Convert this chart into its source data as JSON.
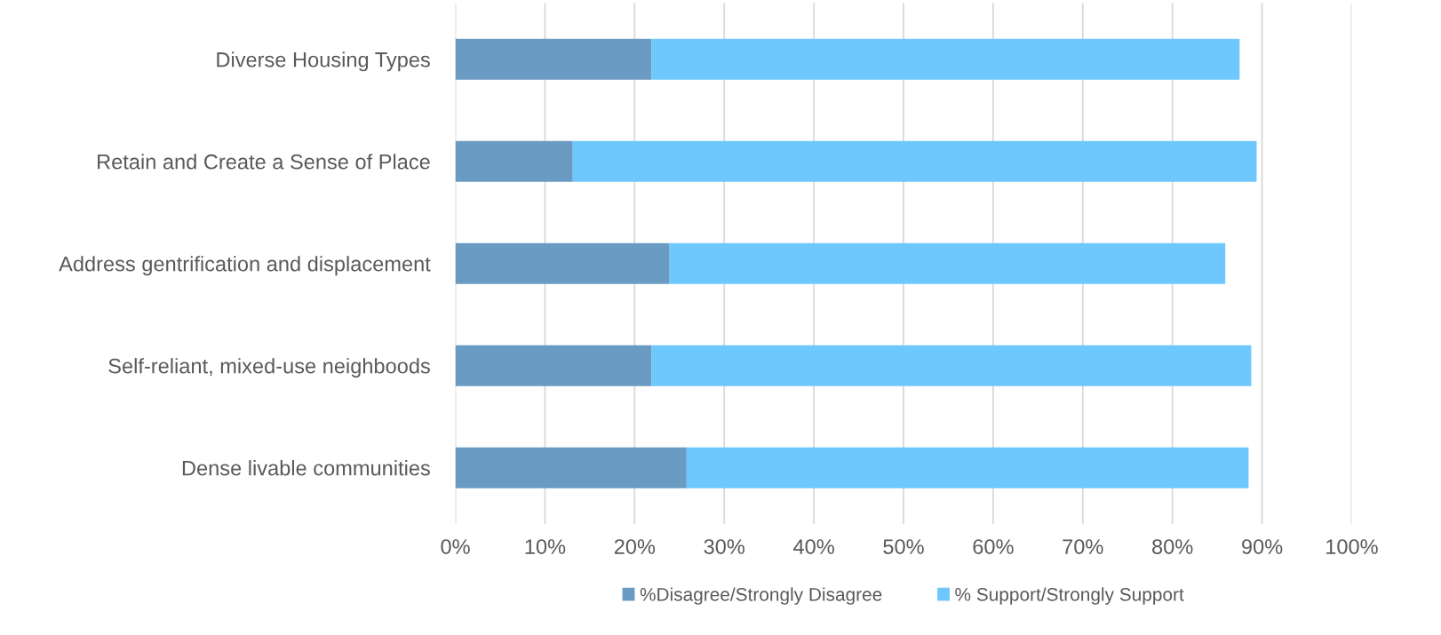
{
  "chart_data": {
    "type": "bar",
    "orientation": "horizontal",
    "stacked": true,
    "categories": [
      "Diverse Housing Types",
      "Retain and Create a Sense of Place",
      "Address gentrification and displacement",
      "Self-reliant, mixed-use neighboods",
      "Dense livable communities"
    ],
    "series": [
      {
        "name": "%Disagree/Strongly Disagree",
        "color": "#6a9bc3",
        "values": [
          21.9,
          13.1,
          23.9,
          21.9,
          25.8
        ]
      },
      {
        "name": "% Support/Strongly Support",
        "color": "#6fc8fd",
        "values": [
          65.6,
          76.3,
          62.0,
          66.9,
          62.7
        ]
      }
    ],
    "xlim": [
      0,
      100
    ],
    "xticks": [
      {
        "value": 0,
        "label": "0%"
      },
      {
        "value": 10,
        "label": "10%"
      },
      {
        "value": 20,
        "label": "20%"
      },
      {
        "value": 30,
        "label": "30%"
      },
      {
        "value": 40,
        "label": "40%"
      },
      {
        "value": 50,
        "label": "50%"
      },
      {
        "value": 60,
        "label": "60%"
      },
      {
        "value": 70,
        "label": "70%"
      },
      {
        "value": 80,
        "label": "80%"
      },
      {
        "value": 90,
        "label": "90%"
      },
      {
        "value": 100,
        "label": "100%"
      }
    ],
    "grid": "x",
    "legend": "bottom"
  }
}
